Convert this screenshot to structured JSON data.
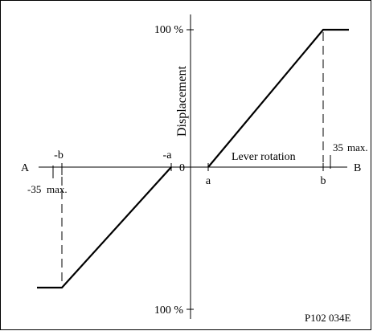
{
  "diagram": {
    "y_axis_label": "Displacement",
    "x_axis_label": "Lever rotation",
    "left_end_label": "A",
    "right_end_label": "B",
    "origin_label": "0",
    "top_value_label": "100 %",
    "bottom_value_label": "100 %",
    "tick_a": "a",
    "tick_b": "b",
    "tick_neg_a": "-a",
    "tick_neg_b": "-b",
    "limit_pos_value": "35",
    "limit_pos_suffix": "max.",
    "limit_neg_value": "-35",
    "limit_neg_suffix": "max.",
    "figure_id": "P102 034E"
  }
}
